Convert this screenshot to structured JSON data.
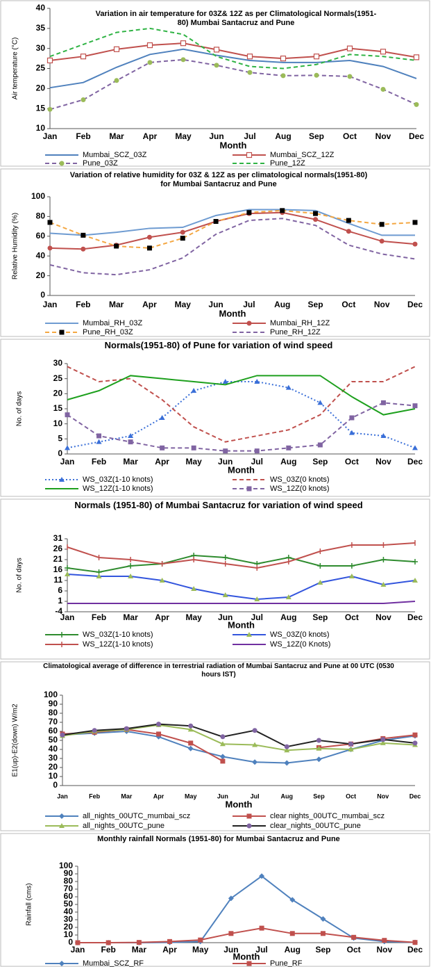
{
  "chart_data": [
    {
      "type": "line",
      "title": "Variation in air temperature for 03Z& 12Z as per Climatological Normals(1951-80) Mumbai Santacruz and Pune",
      "x_label": "Month",
      "y_label": "Air temperature (°C)",
      "categories": [
        "Jan",
        "Feb",
        "Mar",
        "Apr",
        "May",
        "Jun",
        "Jul",
        "Aug",
        "Sep",
        "Oct",
        "Nov",
        "Dec"
      ],
      "ylim": [
        10,
        40
      ],
      "yticks": [
        10,
        15,
        20,
        25,
        30,
        35,
        40
      ],
      "series": [
        {
          "name": "Mumbai_SCZ_03Z",
          "color": "#4f81bd",
          "values": [
            20.2,
            21.5,
            25.3,
            28.5,
            29.8,
            28.3,
            27,
            26.5,
            26.5,
            27,
            25.5,
            22.5
          ]
        },
        {
          "name": "Mumbai_SCZ_12Z",
          "color": "#c0504d",
          "marker": "open-square",
          "values": [
            27,
            28,
            29.8,
            30.8,
            31.3,
            29.7,
            28,
            27.5,
            28,
            30,
            29.2,
            27.8
          ]
        },
        {
          "name": "Pune_03Z",
          "color": "#8064a2",
          "dash": "dashed",
          "marker": "circle",
          "marker_color": "#9bbb59",
          "values": [
            14.8,
            17.2,
            22,
            26.5,
            27.2,
            25.8,
            24,
            23.2,
            23.3,
            23,
            19.8,
            16
          ]
        },
        {
          "name": "Pune_12Z",
          "color": "#2fb344",
          "dash": "dashed",
          "values": [
            28,
            31,
            34,
            35,
            33.5,
            28,
            25.5,
            25,
            26,
            28.5,
            28,
            27
          ]
        }
      ]
    },
    {
      "type": "line",
      "title": "Variation of relative humidity for 03Z & 12Z as per climatological normals(1951-80) for Mumbai Santacruz and Pune",
      "x_label": "Month",
      "y_label": "Relative Humidity (%)",
      "categories": [
        "Jan",
        "Feb",
        "Mar",
        "Apr",
        "May",
        "Jun",
        "Jul",
        "Aug",
        "Sep",
        "Oct",
        "Nov",
        "Dec"
      ],
      "ylim": [
        0,
        100
      ],
      "yticks": [
        0,
        20,
        40,
        60,
        80,
        100
      ],
      "series": [
        {
          "name": "Mumbai_RH_03Z",
          "color": "#6e9bd1",
          "values": [
            63,
            61,
            64,
            68,
            69,
            81,
            87,
            87,
            86,
            73,
            61,
            61
          ]
        },
        {
          "name": "Mumbai_RH_12Z",
          "color": "#c0504d",
          "marker": "circle",
          "values": [
            48,
            47,
            51,
            59,
            64,
            75,
            83,
            84,
            77,
            65,
            55,
            52
          ]
        },
        {
          "name": "Pune_RH_03Z",
          "color": "#f4a742",
          "dash": "dashed",
          "marker": "square",
          "marker_color": "#000000",
          "values": [
            74,
            61,
            50,
            48,
            58,
            75,
            84,
            86,
            83,
            76,
            72,
            74
          ]
        },
        {
          "name": "Pune_RH_12Z",
          "color": "#8064a2",
          "dash": "dashed",
          "values": [
            31,
            23,
            21,
            26,
            38,
            62,
            76,
            78,
            71,
            51,
            42,
            37
          ]
        }
      ]
    },
    {
      "type": "line",
      "title": "Normals(1951-80) of Pune for variation of wind speed",
      "x_label": "Month",
      "y_label": "No. of days",
      "categories": [
        "Jan",
        "Feb",
        "Mar",
        "Apr",
        "May",
        "Jun",
        "Jul",
        "Aug",
        "Sep",
        "Oct",
        "Nov",
        "Dec"
      ],
      "ylim": [
        0,
        30
      ],
      "yticks": [
        0,
        5,
        10,
        15,
        20,
        25,
        30
      ],
      "series": [
        {
          "name": "WS_03Z(1-10 knots)",
          "color": "#3a6fd8",
          "dash": "dotted",
          "marker": "triangle",
          "values": [
            2,
            4,
            6,
            12,
            21,
            24,
            24,
            22,
            17,
            7,
            6,
            2
          ]
        },
        {
          "name": "WS_03Z(0 knots)",
          "color": "#c0504d",
          "dash": "dashed",
          "values": [
            29,
            24,
            25,
            18,
            9,
            4,
            6,
            8,
            13,
            24,
            24,
            29
          ]
        },
        {
          "name": "WS_12Z(1-10 knots)",
          "color": "#1ea01e",
          "values": [
            18,
            21,
            26,
            25,
            24,
            23,
            26,
            26,
            26,
            19,
            13,
            15
          ]
        },
        {
          "name": "WS_12Z(0 knots)",
          "color": "#8064a2",
          "dash": "dashed",
          "marker": "square",
          "values": [
            13,
            6,
            4,
            2,
            2,
            1,
            1,
            2,
            3,
            12,
            17,
            16
          ]
        }
      ]
    },
    {
      "type": "line",
      "title": "Normals (1951-80) of Mumbai Santacruz for variation of wind speed",
      "x_label": "Month",
      "y_label": "No. of days",
      "categories": [
        "Jan",
        "Feb",
        "Mar",
        "Apr",
        "May",
        "Jun",
        "Jul",
        "Aug",
        "Sep",
        "Oct",
        "Nov",
        "Dec"
      ],
      "ylim": [
        -4,
        31
      ],
      "yticks": [
        -4,
        1,
        6,
        11,
        16,
        21,
        26,
        31
      ],
      "series": [
        {
          "name": "WS_03Z(1-10 knots)",
          "color": "#2e8b2e",
          "marker": "plus",
          "values": [
            17,
            15,
            18,
            19,
            23,
            22,
            19,
            22,
            18,
            18,
            21,
            20
          ]
        },
        {
          "name": "WS_03Z(0 knots)",
          "color": "#3355dd",
          "marker": "triangle",
          "marker_color": "#9bbb59",
          "values": [
            14,
            13,
            13,
            11,
            7,
            4,
            2,
            3,
            10,
            13,
            9,
            11
          ]
        },
        {
          "name": "WS_12Z(1-10 knots)",
          "color": "#c0504d",
          "marker": "bar",
          "values": [
            27,
            22,
            21,
            19,
            21,
            19,
            17,
            20,
            25,
            28,
            28,
            29
          ]
        },
        {
          "name": "WS_12Z(0 Knots)",
          "color": "#7030a0",
          "values": [
            0,
            0,
            0,
            0,
            0,
            0,
            0,
            0,
            0,
            0,
            0,
            1
          ]
        }
      ]
    },
    {
      "type": "line",
      "title": "Climatological average of difference in terrestrial radiation of Mumbai Santacruz and Pune at 00 UTC (0530 hours IST)",
      "x_label": "Month",
      "y_label": "E1(up)-E2(down) W/m2",
      "categories": [
        "Jan",
        "Feb",
        "Mar",
        "Apr",
        "May",
        "Jun",
        "Jul",
        "Aug",
        "Sep",
        "Oct",
        "Nov",
        "Dec"
      ],
      "ylim": [
        0,
        100
      ],
      "yticks": [
        0,
        10,
        20,
        30,
        40,
        50,
        60,
        70,
        80,
        90,
        100
      ],
      "series": [
        {
          "name": "all_nights_00UTC_mumbai_scz",
          "color": "#4f81bd",
          "marker": "diamond",
          "values": [
            56,
            58,
            60,
            54,
            41,
            32,
            26,
            25,
            29,
            40,
            50,
            55
          ]
        },
        {
          "name": "clear nights_00UTC_mumbai_scz",
          "color": "#c0504d",
          "marker": "square",
          "values": [
            57,
            59,
            62,
            57,
            47,
            27,
            null,
            null,
            42,
            46,
            52,
            56
          ]
        },
        {
          "name": "all_nights_00UTC_pune",
          "color": "#9bbb59",
          "marker": "triangle",
          "values": [
            55,
            60,
            62,
            67,
            62,
            46,
            45,
            39,
            41,
            40,
            47,
            45
          ]
        },
        {
          "name": "clear_nights_00UTC_pune",
          "color": "#222222",
          "marker": "circle",
          "marker_color": "#8064a2",
          "values": [
            56,
            61,
            63,
            68,
            66,
            54,
            61,
            43,
            50,
            46,
            51,
            47
          ]
        }
      ]
    },
    {
      "type": "line",
      "title": "Monthly rainfall Normals (1951-80) for Mumbai Santacruz and Pune",
      "x_label": "Month",
      "y_label": "Rainfall (cms)",
      "categories": [
        "Jan",
        "Feb",
        "Mar",
        "Apr",
        "May",
        "Jun",
        "Jul",
        "Aug",
        "Sep",
        "Oct",
        "Nov",
        "Dec"
      ],
      "ylim": [
        0,
        100
      ],
      "yticks": [
        0,
        10,
        20,
        30,
        40,
        50,
        60,
        70,
        80,
        90,
        100
      ],
      "series": [
        {
          "name": "Mumbai_SCZ_RF",
          "color": "#4f81bd",
          "marker": "diamond",
          "values": [
            0,
            0,
            0,
            0.3,
            1.5,
            58,
            87,
            56,
            31,
            6,
            1.5,
            0.3
          ]
        },
        {
          "name": "Pune_RF",
          "color": "#c0504d",
          "marker": "square",
          "values": [
            0,
            0,
            0.3,
            1.5,
            3.5,
            12,
            19,
            12,
            12,
            7,
            3,
            0.3
          ]
        }
      ]
    }
  ]
}
